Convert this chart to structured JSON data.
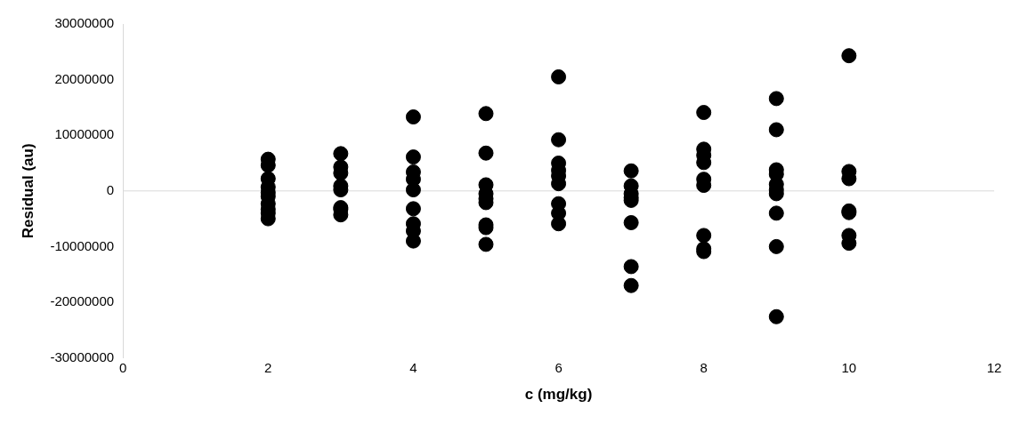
{
  "chart_data": {
    "type": "scatter",
    "xlabel": "c (mg/kg)",
    "ylabel": "Residual (au)",
    "marker": "circle",
    "grid": false,
    "legend": false,
    "x": [
      2,
      2,
      2,
      2,
      2,
      2,
      2,
      2,
      2,
      2,
      3,
      3,
      3,
      3,
      3,
      3,
      3,
      3,
      4,
      4,
      4,
      4,
      4,
      4,
      4,
      4,
      4,
      5,
      5,
      5,
      5,
      5,
      5,
      5,
      5,
      5,
      6,
      6,
      6,
      6,
      6,
      6,
      6,
      6,
      6,
      7,
      7,
      7,
      7,
      7,
      7,
      7,
      7,
      8,
      8,
      8,
      8,
      8,
      8,
      8,
      8,
      8,
      9,
      9,
      9,
      9,
      9,
      9,
      9,
      9,
      9,
      9,
      10,
      10,
      10,
      10,
      10,
      10,
      10
    ],
    "series": [
      {
        "color": "#000000",
        "values": [
          5700000,
          4600000,
          2200000,
          700000,
          -300000,
          -1000000,
          -2300000,
          -3300000,
          -4000000,
          -5000000,
          6700000,
          4300000,
          3200000,
          900000,
          200000,
          -3000000,
          -3300000,
          -4300000,
          13300000,
          6100000,
          3400000,
          2100000,
          200000,
          -3200000,
          -5900000,
          -7200000,
          -9000000,
          13900000,
          6800000,
          1100000,
          -500000,
          -1400000,
          -2100000,
          -6100000,
          -6600000,
          -9600000,
          20500000,
          9200000,
          5000000,
          3700000,
          2700000,
          1300000,
          -2300000,
          -4000000,
          -5900000,
          3600000,
          900000,
          -500000,
          -1200000,
          -1700000,
          -5700000,
          -13600000,
          -17000000,
          14100000,
          7500000,
          6400000,
          5100000,
          2100000,
          1000000,
          -8000000,
          -10400000,
          -10900000,
          16600000,
          11000000,
          3800000,
          3000000,
          1200000,
          200000,
          -500000,
          -4000000,
          -10000000,
          -22600000,
          24300000,
          3500000,
          2200000,
          -3600000,
          -3900000,
          -8000000,
          -9400000
        ]
      }
    ],
    "ref_lines": [
      {
        "axis": "y",
        "value": 0,
        "color": "#d9d9d9"
      }
    ],
    "xlim": [
      0,
      12
    ],
    "xticks": [
      0,
      2,
      4,
      6,
      8,
      10,
      12
    ],
    "ylim": [
      -30000000,
      30000000
    ],
    "yticks": [
      -30000000,
      -20000000,
      -10000000,
      0,
      10000000,
      20000000,
      30000000
    ]
  }
}
